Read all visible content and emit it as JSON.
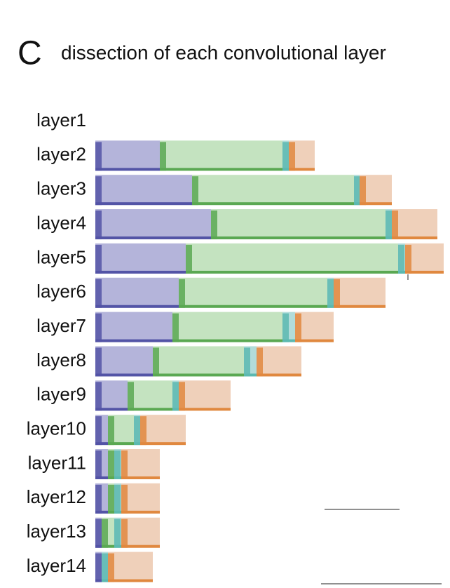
{
  "panel_letter": "C",
  "chart_data": {
    "type": "stacked-barh",
    "title": "dissection of each convolutional layer",
    "categories": [
      "layer1",
      "layer2",
      "layer3",
      "layer4",
      "layer5",
      "layer6",
      "layer7",
      "layer8",
      "layer9",
      "layer10",
      "layer11",
      "layer12",
      "layer13",
      "layer14"
    ],
    "series": [
      {
        "color": "#b4b4da",
        "edge_color": "#5354a6",
        "values": [
          null,
          92,
          138,
          165,
          129,
          119,
          110,
          82,
          46,
          18,
          18,
          18,
          9,
          9
        ]
      },
      {
        "color": "#c4e3c0",
        "edge_color": "#5aa852",
        "values": [
          null,
          175,
          231,
          249,
          303,
          212,
          157,
          130,
          64,
          37,
          9,
          9,
          18,
          0
        ]
      },
      {
        "color": "#b2dcda",
        "edge_color": "#5cb8b0",
        "values": [
          null,
          9,
          8,
          9,
          10,
          9,
          18,
          18,
          9,
          9,
          10,
          10,
          10,
          9
        ]
      },
      {
        "color": "#efd0ba",
        "edge_color": "#e0883f",
        "values": [
          null,
          37,
          46,
          65,
          55,
          74,
          55,
          64,
          74,
          65,
          55,
          55,
          55,
          64
        ]
      }
    ]
  }
}
